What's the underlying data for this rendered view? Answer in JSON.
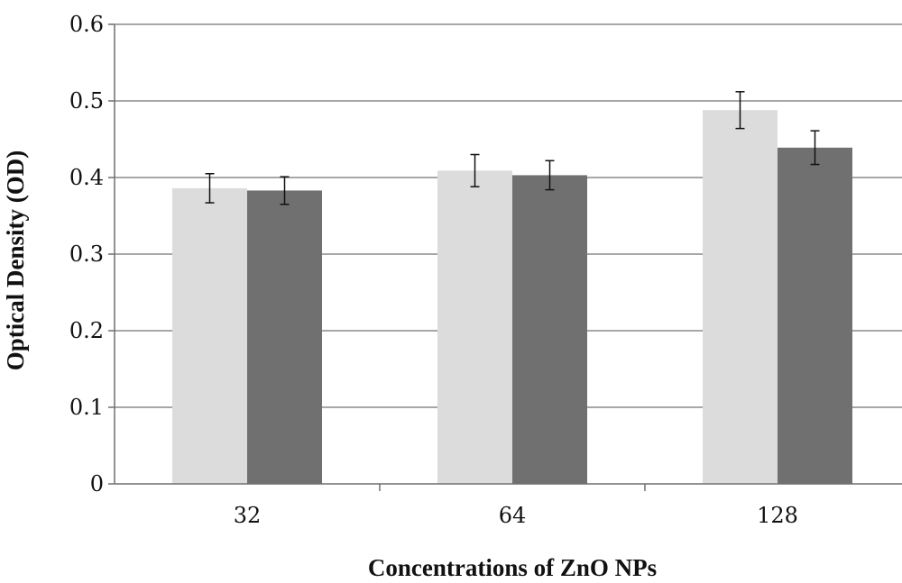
{
  "chart_data": {
    "type": "bar",
    "title": "",
    "xlabel": "Concentrations of ZnO NPs",
    "ylabel": "Optical Density (OD)",
    "categories": [
      "32",
      "64",
      "128"
    ],
    "ylim": [
      0,
      0.6
    ],
    "yticks": [
      "0",
      "0.1",
      "0.2",
      "0.3",
      "0.4",
      "0.5",
      "0.6"
    ],
    "grid": true,
    "legend": "none",
    "series": [
      {
        "values": [
          0.386,
          0.409,
          0.488
        ],
        "errors": [
          0.019,
          0.021,
          0.024
        ],
        "color": "#dcdcdc"
      },
      {
        "values": [
          0.383,
          0.403,
          0.439
        ],
        "errors": [
          0.018,
          0.019,
          0.022
        ],
        "color": "#707070"
      }
    ]
  }
}
